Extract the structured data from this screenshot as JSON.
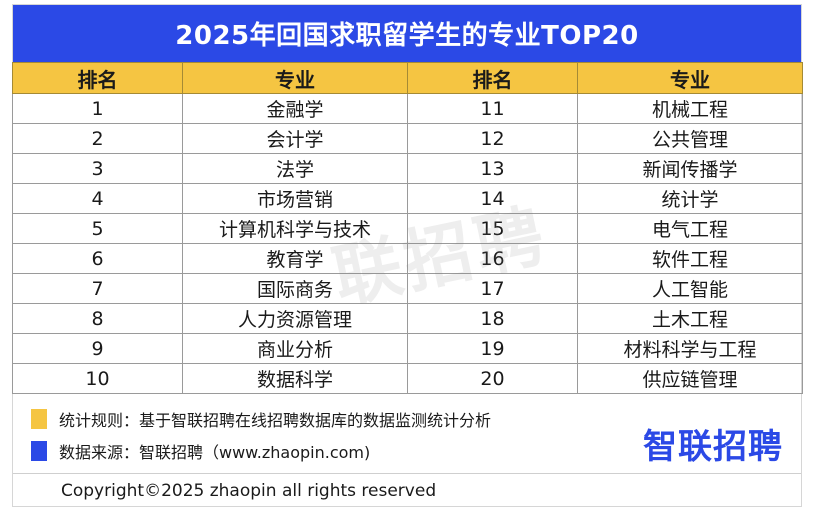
{
  "title": "2025年回国求职留学生的专业TOP20",
  "headers": [
    "排名",
    "专业",
    "排名",
    "专业"
  ],
  "rows": [
    {
      "rank_left": "1",
      "major_left": "金融学",
      "rank_right": "11",
      "major_right": "机械工程"
    },
    {
      "rank_left": "2",
      "major_left": "会计学",
      "rank_right": "12",
      "major_right": "公共管理"
    },
    {
      "rank_left": "3",
      "major_left": "法学",
      "rank_right": "13",
      "major_right": "新闻传播学"
    },
    {
      "rank_left": "4",
      "major_left": "市场营销",
      "rank_right": "14",
      "major_right": "统计学"
    },
    {
      "rank_left": "5",
      "major_left": "计算机科学与技术",
      "rank_right": "15",
      "major_right": "电气工程"
    },
    {
      "rank_left": "6",
      "major_left": "教育学",
      "rank_right": "16",
      "major_right": "软件工程"
    },
    {
      "rank_left": "7",
      "major_left": "国际商务",
      "rank_right": "17",
      "major_right": "人工智能"
    },
    {
      "rank_left": "8",
      "major_left": "人力资源管理",
      "rank_right": "18",
      "major_right": "土木工程"
    },
    {
      "rank_left": "9",
      "major_left": "商业分析",
      "rank_right": "19",
      "major_right": "材料科学与工程"
    },
    {
      "rank_left": "10",
      "major_left": "数据科学",
      "rank_right": "20",
      "major_right": "供应链管理"
    }
  ],
  "notes": {
    "rule": "统计规则：基于智联招聘在线招聘数据库的数据监测统计分析",
    "source": "数据来源：智联招聘（www.zhaopin.com)"
  },
  "logo_text": "智联招聘",
  "watermark_text": "联招聘",
  "copyright": "Copyright©2025 zhaopin all rights reserved",
  "colors": {
    "title_bg": "#2b49e6",
    "header_bg": "#f5c542",
    "logo": "#2b49e6"
  }
}
